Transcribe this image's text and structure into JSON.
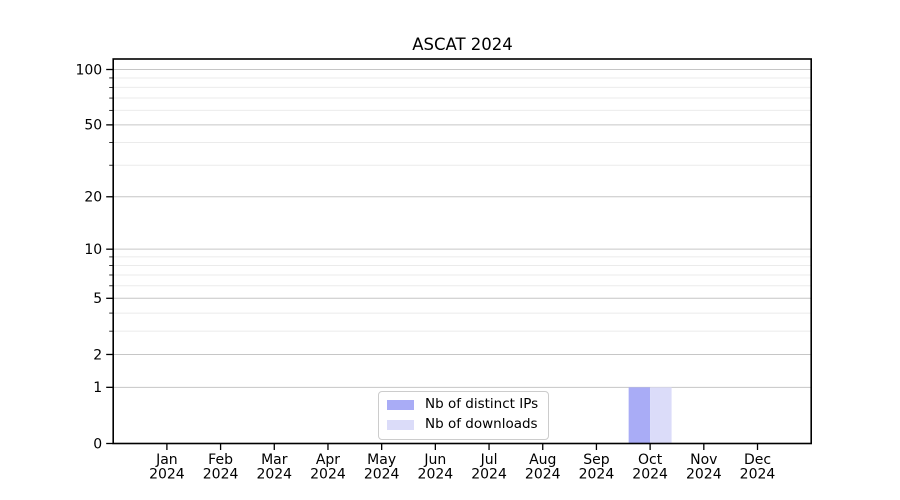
{
  "figure": {
    "background": "#ffffff"
  },
  "chart_data": {
    "type": "bar",
    "title": "ASCAT 2024",
    "categories": [
      "Jan 2024",
      "Feb 2024",
      "Mar 2024",
      "Apr 2024",
      "May 2024",
      "Jun 2024",
      "Jul 2024",
      "Aug 2024",
      "Sep 2024",
      "Oct 2024",
      "Nov 2024",
      "Dec 2024"
    ],
    "series": [
      {
        "name": "Nb of distinct IPs",
        "color": "#a9acf6",
        "values": [
          0,
          0,
          0,
          0,
          0,
          0,
          0,
          0,
          0,
          1,
          0,
          0
        ]
      },
      {
        "name": "Nb of downloads",
        "color": "#dbdcf9",
        "values": [
          0,
          0,
          0,
          0,
          0,
          0,
          0,
          0,
          0,
          1,
          0,
          0
        ]
      }
    ],
    "xlabel": "",
    "ylabel": "",
    "yscale": "log10(1+x)",
    "ylim": [
      0,
      113
    ],
    "y_major_ticks": [
      100,
      50,
      20,
      10,
      5,
      2,
      1,
      0
    ],
    "y_minor_gridlines": [
      3,
      4,
      6,
      7,
      8,
      9,
      30,
      40,
      60,
      70,
      80,
      90
    ],
    "grid": true,
    "legend_position": "lower center inside axes",
    "colors": {
      "major_grid": "#c6c6c6",
      "minor_grid": "#ebebeb",
      "spine": "#000000",
      "tick_label": "#000000"
    }
  }
}
